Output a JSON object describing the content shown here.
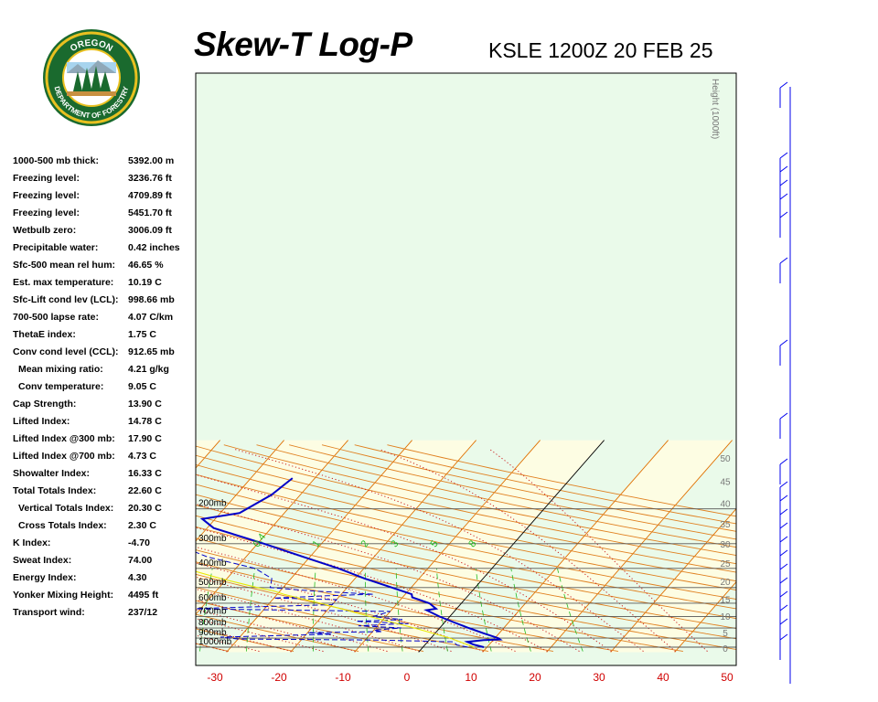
{
  "header": {
    "title": "Skew-T Log-P",
    "station_time": "KSLE 1200Z 20 FEB 25"
  },
  "logo": {
    "top_text": "OREGON",
    "bottom_text": "DEPARTMENT OF FORESTRY"
  },
  "indices": [
    {
      "label": "1000-500 mb thick:",
      "value": "5392.00 m",
      "indent": false
    },
    {
      "label": "Freezing level:",
      "value": "3236.76 ft",
      "indent": false
    },
    {
      "label": "Freezing level:",
      "value": "4709.89 ft",
      "indent": false
    },
    {
      "label": "Freezing level:",
      "value": "5451.70 ft",
      "indent": false
    },
    {
      "label": "Wetbulb zero:",
      "value": "3006.09 ft",
      "indent": false
    },
    {
      "label": "Precipitable water:",
      "value": "0.42 inches",
      "indent": false
    },
    {
      "label": "Sfc-500 mean rel hum:",
      "value": "46.65 %",
      "indent": false
    },
    {
      "label": "Est. max temperature:",
      "value": "10.19 C",
      "indent": false
    },
    {
      "label": "Sfc-Lift cond lev (LCL):",
      "value": "998.66 mb",
      "indent": false
    },
    {
      "label": "700-500 lapse rate:",
      "value": "4.07 C/km",
      "indent": false
    },
    {
      "label": "ThetaE index:",
      "value": "1.75 C",
      "indent": false
    },
    {
      "label": "Conv cond level (CCL):",
      "value": "912.65 mb",
      "indent": false
    },
    {
      "label": "Mean mixing ratio:",
      "value": "4.21 g/kg",
      "indent": true
    },
    {
      "label": "Conv temperature:",
      "value": "9.05 C",
      "indent": true
    },
    {
      "label": "Cap Strength:",
      "value": "13.90 C",
      "indent": false
    },
    {
      "label": "Lifted Index:",
      "value": "14.78 C",
      "indent": false
    },
    {
      "label": "Lifted Index @300 mb:",
      "value": "17.90 C",
      "indent": false
    },
    {
      "label": "Lifted Index @700 mb:",
      "value": "4.73 C",
      "indent": false
    },
    {
      "label": "Showalter Index:",
      "value": "16.33 C",
      "indent": false
    },
    {
      "label": "Total Totals Index:",
      "value": "22.60 C",
      "indent": false
    },
    {
      "label": "Vertical Totals Index:",
      "value": "20.30 C",
      "indent": true
    },
    {
      "label": "Cross Totals Index:",
      "value": "2.30 C",
      "indent": true
    },
    {
      "label": "K Index:",
      "value": "-4.70",
      "indent": false
    },
    {
      "label": "Sweat Index:",
      "value": "74.00",
      "indent": false
    },
    {
      "label": "Energy Index:",
      "value": "4.30",
      "indent": false
    },
    {
      "label": "Yonker Mixing Height:",
      "value": "4495 ft",
      "indent": false
    },
    {
      "label": "Transport wind:",
      "value": "237/12",
      "indent": false
    }
  ],
  "colors": {
    "temperature": "#0000c8",
    "dewpoint": "#0000c8",
    "parcel": "#e8e800",
    "isotherm": "#e07000",
    "dry_adiabat": "#e08020",
    "moist_adiabat": "#cc2020",
    "mixing_ratio": "#22bb22",
    "isobar": "#555555",
    "band_green": "#eafaea",
    "band_yellow": "#fdfde3",
    "wind_barb": "#0000ee"
  },
  "chart_data": {
    "type": "line",
    "title": "Skew-T Log-P",
    "xlabel": "",
    "ylabel": "",
    "xlim": [
      -30,
      50
    ],
    "x_ticks": [
      -30,
      -20,
      -10,
      0,
      10,
      20,
      30,
      40,
      50
    ],
    "pressure_levels": [
      1000,
      900,
      800,
      700,
      600,
      500,
      400,
      300,
      200
    ],
    "pressure_labels": [
      "1000mb",
      "900mb",
      "800mb",
      "700mb",
      "600mb",
      "500mb",
      "400mb",
      "300mb",
      "200mb"
    ],
    "height_axis_label": "Height (1000ft)",
    "height_ticks": [
      0,
      5,
      10,
      15,
      20,
      25,
      30,
      35,
      40,
      45,
      50
    ],
    "mixing_ratio_labels": [
      "0.4",
      "1",
      "2",
      "3",
      "5",
      "8"
    ],
    "series": [
      {
        "role": "temperature",
        "style": "solid",
        "points": [
          {
            "p": 1000,
            "t": 9.5
          },
          {
            "p": 970,
            "t": 7.5
          },
          {
            "p": 940,
            "t": 6.2
          },
          {
            "p": 920,
            "t": 8.5
          },
          {
            "p": 915,
            "t": 11.0
          },
          {
            "p": 900,
            "t": 10.5
          },
          {
            "p": 850,
            "t": 7.5
          },
          {
            "p": 800,
            "t": 4.5
          },
          {
            "p": 750,
            "t": 1.5
          },
          {
            "p": 700,
            "t": -1.6
          },
          {
            "p": 650,
            "t": -4.5
          },
          {
            "p": 640,
            "t": -3.2
          },
          {
            "p": 600,
            "t": -5.0
          },
          {
            "p": 560,
            "t": -8.5
          },
          {
            "p": 540,
            "t": -9.0
          },
          {
            "p": 500,
            "t": -13.0
          },
          {
            "p": 450,
            "t": -18.5
          },
          {
            "p": 400,
            "t": -24.0
          },
          {
            "p": 350,
            "t": -31.0
          },
          {
            "p": 300,
            "t": -39.0
          },
          {
            "p": 250,
            "t": -49.0
          },
          {
            "p": 225,
            "t": -52.0
          },
          {
            "p": 210,
            "t": -47.0
          },
          {
            "p": 170,
            "t": -44.5
          },
          {
            "p": 140,
            "t": -43.5
          }
        ]
      },
      {
        "role": "dewpoint",
        "style": "dashed",
        "points": [
          {
            "p": 1000,
            "t": 7.0
          },
          {
            "p": 975,
            "t": 5.0
          },
          {
            "p": 940,
            "t": 4.0
          },
          {
            "p": 920,
            "t": -8.0
          },
          {
            "p": 910,
            "t": -30.0
          },
          {
            "p": 890,
            "t": -33.0
          },
          {
            "p": 860,
            "t": -16.0
          },
          {
            "p": 845,
            "t": -20.0
          },
          {
            "p": 835,
            "t": -8.5
          },
          {
            "p": 820,
            "t": -10.0
          },
          {
            "p": 800,
            "t": -6.0
          },
          {
            "p": 780,
            "t": -13.0
          },
          {
            "p": 760,
            "t": -5.5
          },
          {
            "p": 740,
            "t": -14.0
          },
          {
            "p": 725,
            "t": -7.0
          },
          {
            "p": 700,
            "t": -12.0
          },
          {
            "p": 660,
            "t": -10.0
          },
          {
            "p": 640,
            "t": -42.0
          },
          {
            "p": 610,
            "t": -20.0
          },
          {
            "p": 575,
            "t": -20.0
          },
          {
            "p": 565,
            "t": -30.0
          },
          {
            "p": 550,
            "t": -22.0
          },
          {
            "p": 540,
            "t": -15.0
          },
          {
            "p": 520,
            "t": -25.0
          },
          {
            "p": 500,
            "t": -32.0
          },
          {
            "p": 450,
            "t": -33.0
          },
          {
            "p": 400,
            "t": -37.0
          },
          {
            "p": 350,
            "t": -46.0
          },
          {
            "p": 300,
            "t": -53.0
          },
          {
            "p": 270,
            "t": -55.0
          },
          {
            "p": 240,
            "t": -54.0
          },
          {
            "p": 230,
            "t": -62.0
          },
          {
            "p": 215,
            "t": -72.0
          },
          {
            "p": 185,
            "t": -73.0
          },
          {
            "p": 165,
            "t": -71.0
          },
          {
            "p": 150,
            "t": -75.0
          }
        ]
      },
      {
        "role": "parcel",
        "style": "solid",
        "points": [
          {
            "p": 1000,
            "t": 8.0
          },
          {
            "p": 900,
            "t": 3.0
          },
          {
            "p": 800,
            "t": -4.0
          },
          {
            "p": 700,
            "t": -12.5
          },
          {
            "p": 600,
            "t": -22.0
          },
          {
            "p": 540,
            "t": -29.0
          },
          {
            "p": 520,
            "t": -31.0
          },
          {
            "p": 500,
            "t": -34.0
          },
          {
            "p": 450,
            "t": -41.0
          },
          {
            "p": 400,
            "t": -48.0
          }
        ]
      }
    ]
  }
}
